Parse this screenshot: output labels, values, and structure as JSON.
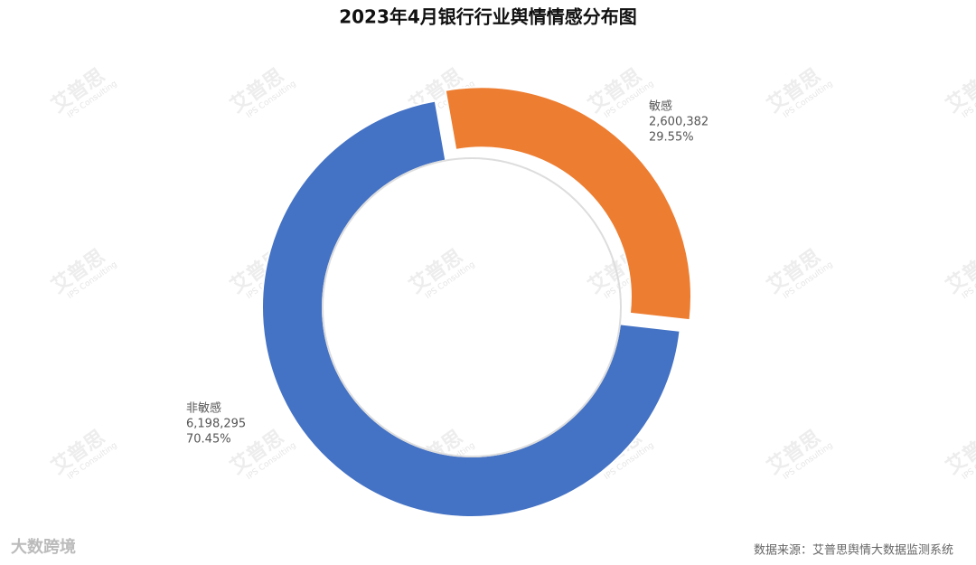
{
  "chart_data": {
    "type": "donut",
    "title": "2023年4月银行行业舆情情感分布图",
    "categories": [
      "敏感",
      "非敏感"
    ],
    "values": [
      2600382,
      6198295
    ],
    "value_labels": [
      "2,600,382",
      "6,198,295"
    ],
    "percents": [
      29.55,
      70.45
    ],
    "percent_labels": [
      "29.55%",
      "70.45%"
    ],
    "colors": [
      "#ed7d31",
      "#4472c4"
    ],
    "source": "数据来源：艾普思舆情大数据监测系统",
    "brand": "大数跨境",
    "watermark": "艾普思",
    "watermark_sub": "IPS Consulting"
  }
}
